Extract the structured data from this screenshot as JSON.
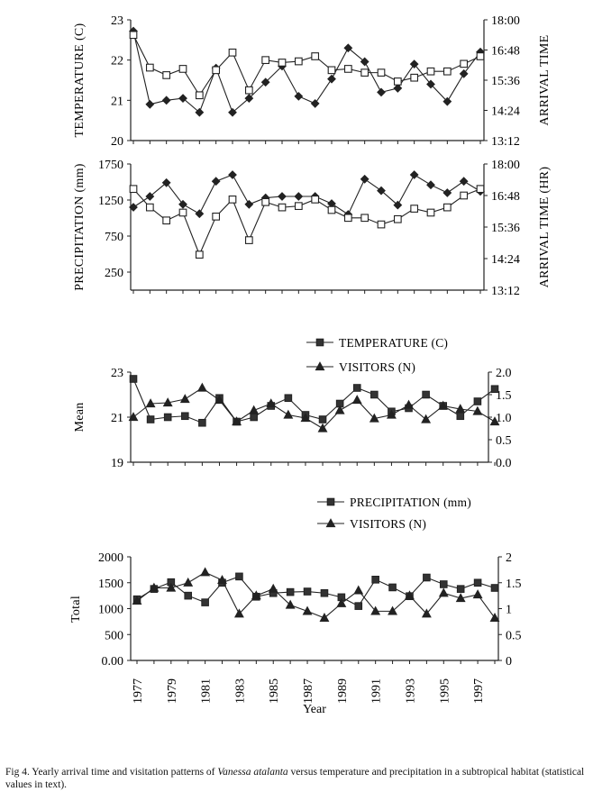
{
  "chart_data": [
    {
      "type": "line",
      "x": [
        1977,
        1978,
        1979,
        1980,
        1981,
        1982,
        1983,
        1984,
        1985,
        1986,
        1987,
        1988,
        1989,
        1990,
        1991,
        1992,
        1993,
        1994,
        1995,
        1996,
        1997,
        1998
      ],
      "ylabel": "TEMPERATURE (C)",
      "y2label": "ARRIVAL TIME",
      "ylim": [
        20,
        23
      ],
      "y2lim": [
        "13:12",
        "18:00"
      ],
      "yticks": [
        "20",
        "21",
        "22",
        "23"
      ],
      "y2ticks": [
        "13:12",
        "14:24",
        "15:36",
        "16:48",
        "18:00"
      ],
      "series": [
        {
          "marker": "diamond-filled",
          "axis": "left",
          "values": [
            22.72,
            20.9,
            21.0,
            21.05,
            20.7,
            21.8,
            20.7,
            21.05,
            21.45,
            21.85,
            21.1,
            20.92,
            21.53,
            22.3,
            21.96,
            21.2,
            21.3,
            21.9,
            21.4,
            20.97,
            21.66,
            22.2
          ]
        },
        {
          "marker": "square-open",
          "axis": "right",
          "values": [
            "17:24",
            "16:06",
            "15:48",
            "16:03",
            "15:00",
            "16:00",
            "16:42",
            "15:12",
            "16:24",
            "16:18",
            "16:21",
            "16:33",
            "16:00",
            "16:03",
            "15:54",
            "15:54",
            "15:33",
            "15:42",
            "15:57",
            "15:57",
            "16:15",
            "16:33"
          ]
        }
      ]
    },
    {
      "type": "line",
      "x": [
        1977,
        1978,
        1979,
        1980,
        1981,
        1982,
        1983,
        1984,
        1985,
        1986,
        1987,
        1988,
        1989,
        1990,
        1991,
        1992,
        1993,
        1994,
        1995,
        1996,
        1997,
        1998
      ],
      "ylabel": "PRECIPITATION (mm)",
      "y2label": "ARRIVAL TIME (HR)",
      "ylim": [
        0,
        1750
      ],
      "y2lim": [
        "13:12",
        "18:00"
      ],
      "yticks": [
        "250",
        "750",
        "1250",
        "1750"
      ],
      "y2ticks": [
        "13:12",
        "14:24",
        "15:36",
        "16:48",
        "18:00"
      ],
      "series": [
        {
          "marker": "diamond-filled",
          "axis": "left",
          "values": [
            1150,
            1300,
            1490,
            1190,
            1060,
            1510,
            1600,
            1190,
            1280,
            1300,
            1300,
            1300,
            1200,
            1050,
            1540,
            1380,
            1180,
            1600,
            1460,
            1350,
            1510,
            1370
          ]
        },
        {
          "marker": "square-open",
          "axis": "right",
          "values": [
            "17:03",
            "16:21",
            "15:51",
            "16:09",
            "14:33",
            "16:00",
            "16:39",
            "15:06",
            "16:33",
            "16:21",
            "16:24",
            "16:39",
            "16:15",
            "15:57",
            "15:57",
            "15:42",
            "15:54",
            "16:18",
            "16:09",
            "16:21",
            "16:48",
            "17:03"
          ]
        }
      ]
    },
    {
      "type": "line",
      "x": [
        1977,
        1978,
        1979,
        1980,
        1981,
        1982,
        1983,
        1984,
        1985,
        1986,
        1987,
        1988,
        1989,
        1990,
        1991,
        1992,
        1993,
        1994,
        1995,
        1996,
        1997,
        1998
      ],
      "ylabel": "Mean",
      "ylim": [
        19,
        23
      ],
      "y2lim": [
        0.0,
        2.0
      ],
      "yticks": [
        "19",
        "21",
        "23"
      ],
      "y2ticks": [
        "0.0",
        "0.5",
        "1.0",
        "1.5",
        "2.0"
      ],
      "legend": "top-right",
      "series": [
        {
          "name": "TEMPERATURE (C)",
          "marker": "square-filled",
          "axis": "left",
          "values": [
            22.7,
            20.9,
            21.0,
            21.05,
            20.75,
            21.85,
            20.8,
            21.0,
            21.5,
            21.85,
            21.1,
            20.9,
            21.6,
            22.3,
            22.0,
            21.25,
            21.4,
            22.0,
            21.5,
            21.05,
            21.7,
            22.25
          ]
        },
        {
          "name": "VISITORS (N)",
          "marker": "triangle-filled",
          "axis": "right",
          "values": [
            1.0,
            1.3,
            1.32,
            1.4,
            1.65,
            1.38,
            0.9,
            1.15,
            1.3,
            1.05,
            0.98,
            0.75,
            1.15,
            1.38,
            0.97,
            1.05,
            1.27,
            0.95,
            1.25,
            1.18,
            1.13,
            0.9
          ]
        }
      ]
    },
    {
      "type": "line",
      "x": [
        1977,
        1978,
        1979,
        1980,
        1981,
        1982,
        1983,
        1984,
        1985,
        1986,
        1987,
        1988,
        1989,
        1990,
        1991,
        1992,
        1993,
        1994,
        1995,
        1996,
        1997,
        1998
      ],
      "ylabel": "Total",
      "xlabel": "Year",
      "ylim": [
        0,
        2000
      ],
      "y2lim": [
        0,
        2
      ],
      "yticks": [
        "0.00",
        "500",
        "1000",
        "1500",
        "2000"
      ],
      "y2ticks": [
        "0",
        "0.5",
        "1",
        "1.5",
        "2"
      ],
      "xticks": [
        "1977",
        "1979",
        "1981",
        "1983",
        "1985",
        "1987",
        "1989",
        "1991",
        "1993",
        "1995",
        "1997"
      ],
      "legend": "top-right",
      "series": [
        {
          "name": "PRECIPITATION (mm)",
          "marker": "square-filled",
          "axis": "left",
          "values": [
            1180,
            1380,
            1510,
            1250,
            1120,
            1500,
            1620,
            1230,
            1300,
            1320,
            1330,
            1300,
            1220,
            1050,
            1560,
            1410,
            1240,
            1600,
            1470,
            1380,
            1500,
            1400
          ]
        },
        {
          "name": "VISITORS (N)",
          "marker": "triangle-filled",
          "axis": "right",
          "values": [
            1.15,
            1.4,
            1.4,
            1.5,
            1.7,
            1.55,
            0.9,
            1.25,
            1.38,
            1.07,
            0.95,
            0.82,
            1.1,
            1.35,
            0.95,
            0.95,
            1.25,
            0.9,
            1.3,
            1.2,
            1.27,
            0.82
          ]
        }
      ]
    }
  ],
  "caption": {
    "prefix": "Fig 4. Yearly arrival time and visitation patterns of ",
    "species": "Vanessa atalanta",
    "suffix": " versus temperature and precipitation in a subtropical habitat (statistical values in text)."
  }
}
